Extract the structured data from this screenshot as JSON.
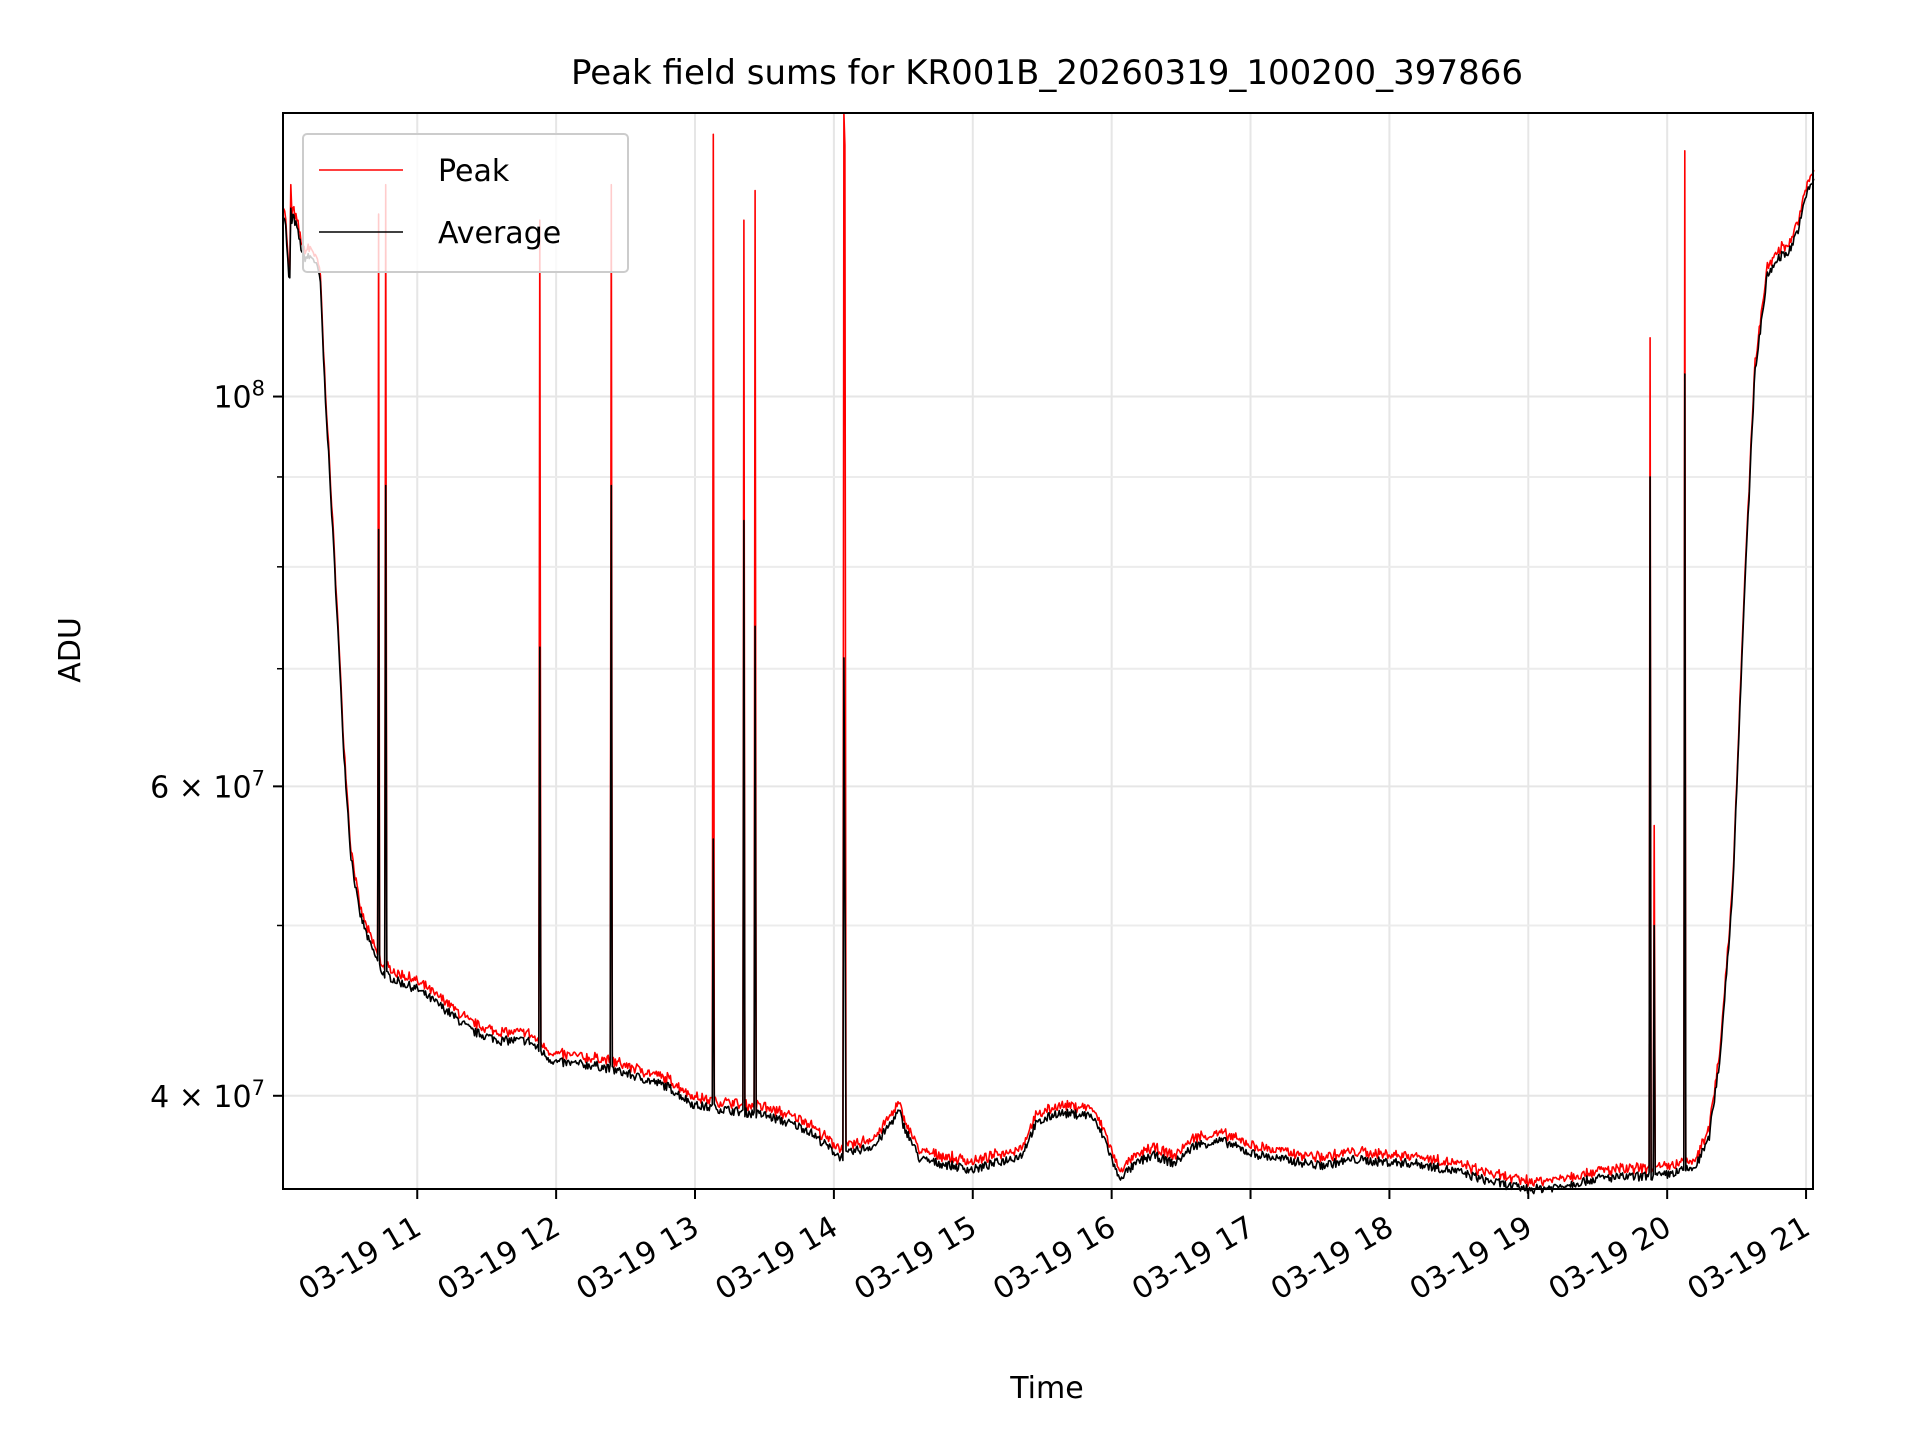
{
  "chart_data": {
    "type": "line",
    "title": "Peak field sums for KR001B_20260319_100200_397866",
    "xlabel": "Time",
    "ylabel": "ADU",
    "y_scale": "log",
    "grid": true,
    "legend": {
      "placement": "upper left",
      "entries": [
        "Peak",
        "Average"
      ]
    },
    "x_ticks": [
      "03-19 11",
      "03-19 12",
      "03-19 13",
      "03-19 14",
      "03-19 15",
      "03-19 16",
      "03-19 17",
      "03-19 18",
      "03-19 19",
      "03-19 20",
      "03-19 21"
    ],
    "y_ticks": [
      {
        "value": 100000000,
        "base": "10",
        "exp": "8"
      },
      {
        "value": 60000000,
        "base": "6 × 10",
        "exp": "7"
      },
      {
        "value": 40000000,
        "base": "4 × 10",
        "exp": "7"
      }
    ],
    "x_range": [
      "2026-03-19 10:02",
      "2026-03-19 21:03"
    ],
    "y_range": [
      35400000,
      145000000
    ],
    "x_unit": "hours of day (2026-03-19)",
    "average_series": {
      "name": "Average",
      "color": "#000000",
      "x": [
        10.03,
        10.05,
        10.08,
        10.1,
        10.13,
        10.18,
        10.25,
        10.3,
        10.33,
        10.37,
        10.42,
        10.47,
        10.52,
        10.58,
        10.65,
        10.7,
        10.75,
        10.85,
        11.0,
        11.2,
        11.4,
        11.6,
        11.8,
        11.95,
        12.0,
        12.3,
        12.5,
        12.8,
        13.0,
        13.2,
        13.5,
        13.8,
        14.05,
        14.15,
        14.3,
        14.4,
        14.47,
        14.5,
        14.62,
        15.0,
        15.35,
        15.45,
        15.6,
        15.85,
        15.95,
        16.05,
        16.2,
        16.3,
        16.45,
        16.6,
        16.8,
        17.0,
        17.15,
        17.5,
        17.75,
        17.9,
        18.2,
        18.5,
        18.7,
        18.9,
        19.0,
        19.05,
        19.2,
        19.5,
        19.85,
        19.95,
        20.2,
        20.3,
        20.38,
        20.47,
        20.55,
        20.63,
        20.72,
        20.8,
        20.88,
        20.95,
        21.0,
        21.03,
        21.06
      ],
      "y": [
        128000000,
        126000000,
        115000000,
        127000000,
        125000000,
        120000000,
        120000000,
        117000000,
        103000000,
        90000000,
        76000000,
        63000000,
        55000000,
        51000000,
        49000000,
        48000000,
        47000000,
        46500000,
        46000000,
        44800000,
        43500000,
        43000000,
        43000000,
        42000000,
        41800000,
        41600000,
        41200000,
        40500000,
        39500000,
        39300000,
        39000000,
        38300000,
        36900000,
        37200000,
        37500000,
        38500000,
        39200000,
        38500000,
        36800000,
        36300000,
        37000000,
        38500000,
        39100000,
        39000000,
        37800000,
        35900000,
        36700000,
        37000000,
        36600000,
        37500000,
        37700000,
        37100000,
        36900000,
        36500000,
        36800000,
        36700000,
        36600000,
        36200000,
        35800000,
        35500000,
        35400000,
        35400000,
        35500000,
        35900000,
        36000000,
        36000000,
        36400000,
        37800000,
        42000000,
        52000000,
        75000000,
        103000000,
        117000000,
        120000000,
        121000000,
        125000000,
        130000000,
        132000000,
        133000000
      ]
    },
    "spikes": [
      {
        "x": 10.09,
        "peak": 132000000,
        "average": 128000000
      },
      {
        "x": 10.72,
        "peak": 127000000,
        "average": 84000000
      },
      {
        "x": 10.77,
        "peak": 132000000,
        "average": 89000000
      },
      {
        "x": 11.88,
        "peak": 126000000,
        "average": 72000000
      },
      {
        "x": 12.4,
        "peak": 132000000,
        "average": 89000000
      },
      {
        "x": 13.13,
        "peak": 141000000,
        "average": 56000000
      },
      {
        "x": 13.35,
        "peak": 126000000,
        "average": 85000000
      },
      {
        "x": 13.43,
        "peak": 131000000,
        "average": 74000000
      },
      {
        "x": 14.07,
        "peak": 145000000,
        "average": 71000000
      },
      {
        "x": 14.08,
        "peak": 139000000,
        "average": 54000000
      },
      {
        "x": 19.88,
        "peak": 108000000,
        "average": 90000000
      },
      {
        "x": 19.91,
        "peak": 57000000,
        "average": 50000000
      },
      {
        "x": 20.13,
        "peak": 138000000,
        "average": 103000000
      }
    ],
    "peak_series": {
      "name": "Peak",
      "color": "#ff0000",
      "offset_factor": 1.008
    }
  }
}
